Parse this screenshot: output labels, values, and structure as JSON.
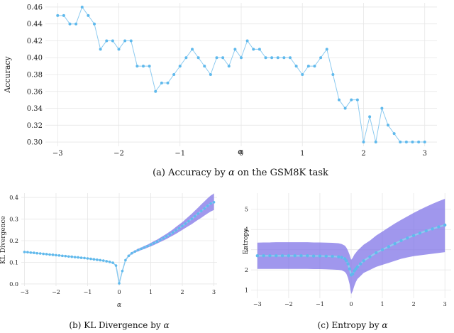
{
  "colors": {
    "line": "#8ecbf0",
    "marker": "#5fb9ec",
    "band": "#7b6fe6",
    "grid": "#e6e6e6"
  },
  "chart_data": [
    {
      "id": "a",
      "type": "line",
      "caption_prefix": "(a) Accuracy by ",
      "caption_symbol": "α",
      "caption_suffix": " on the GSM8K task",
      "xlabel": "α",
      "ylabel": "Accuracy",
      "xlim": [
        -3.2,
        3.2
      ],
      "ylim": [
        0.295,
        0.465
      ],
      "grid": true,
      "xticks": [
        -3,
        -2,
        -1,
        0,
        1,
        2,
        3
      ],
      "xtick_labels": [
        "−3",
        "−2",
        "−1",
        "0",
        "1",
        "2",
        "3"
      ],
      "yticks": [
        0.3,
        0.32,
        0.34,
        0.36,
        0.38,
        0.4,
        0.42,
        0.44,
        0.46
      ],
      "ytick_labels": [
        "0.30",
        "0.32",
        "0.34",
        "0.36",
        "0.38",
        "0.40",
        "0.42",
        "0.44",
        "0.46"
      ],
      "x": [
        -3.0,
        -2.9,
        -2.8,
        -2.7,
        -2.6,
        -2.5,
        -2.4,
        -2.3,
        -2.2,
        -2.1,
        -2.0,
        -1.9,
        -1.8,
        -1.7,
        -1.6,
        -1.5,
        -1.4,
        -1.3,
        -1.2,
        -1.1,
        -1.0,
        -0.9,
        -0.8,
        -0.7,
        -0.6,
        -0.5,
        -0.4,
        -0.3,
        -0.2,
        -0.1,
        0.0,
        0.1,
        0.2,
        0.3,
        0.4,
        0.5,
        0.6,
        0.7,
        0.8,
        0.9,
        1.0,
        1.1,
        1.2,
        1.3,
        1.4,
        1.5,
        1.6,
        1.7,
        1.8,
        1.9,
        2.0,
        2.1,
        2.2,
        2.3,
        2.4,
        2.5,
        2.6,
        2.7,
        2.8,
        2.9,
        3.0
      ],
      "y": [
        0.45,
        0.45,
        0.44,
        0.44,
        0.46,
        0.45,
        0.44,
        0.41,
        0.42,
        0.42,
        0.41,
        0.42,
        0.42,
        0.39,
        0.39,
        0.39,
        0.36,
        0.37,
        0.37,
        0.38,
        0.39,
        0.4,
        0.41,
        0.4,
        0.39,
        0.38,
        0.4,
        0.4,
        0.39,
        0.41,
        0.4,
        0.42,
        0.41,
        0.41,
        0.4,
        0.4,
        0.4,
        0.4,
        0.4,
        0.39,
        0.38,
        0.39,
        0.39,
        0.4,
        0.41,
        0.38,
        0.35,
        0.34,
        0.35,
        0.35,
        0.3,
        0.33,
        0.3,
        0.34,
        0.32,
        0.31,
        0.3,
        0.3,
        0.3,
        0.3,
        0.3
      ]
    },
    {
      "id": "b",
      "type": "line",
      "caption_prefix": "(b) KL Divergence by ",
      "caption_symbol": "α",
      "caption_suffix": "",
      "xlabel": "α",
      "ylabel": "KL Divergence",
      "xlim": [
        -3.1,
        3.1
      ],
      "ylim": [
        -0.01,
        0.42
      ],
      "grid": true,
      "xticks": [
        -3,
        -2,
        -1,
        0,
        1,
        2,
        3
      ],
      "xtick_labels": [
        "−3",
        "−2",
        "−1",
        "0",
        "1",
        "2",
        "3"
      ],
      "yticks": [
        0.0,
        0.1,
        0.2,
        0.3,
        0.4
      ],
      "ytick_labels": [
        "0.0",
        "0.1",
        "0.2",
        "0.3",
        "0.4"
      ],
      "x": [
        -3.0,
        -2.9,
        -2.8,
        -2.7,
        -2.6,
        -2.5,
        -2.4,
        -2.3,
        -2.2,
        -2.1,
        -2.0,
        -1.9,
        -1.8,
        -1.7,
        -1.6,
        -1.5,
        -1.4,
        -1.3,
        -1.2,
        -1.1,
        -1.0,
        -0.9,
        -0.8,
        -0.7,
        -0.6,
        -0.5,
        -0.4,
        -0.3,
        -0.2,
        -0.1,
        0.0,
        0.1,
        0.2,
        0.3,
        0.4,
        0.5,
        0.6,
        0.7,
        0.8,
        0.9,
        1.0,
        1.1,
        1.2,
        1.3,
        1.4,
        1.5,
        1.6,
        1.7,
        1.8,
        1.9,
        2.0,
        2.1,
        2.2,
        2.3,
        2.4,
        2.5,
        2.6,
        2.7,
        2.8,
        2.9,
        3.0
      ],
      "y": [
        0.148,
        0.147,
        0.145,
        0.144,
        0.142,
        0.141,
        0.139,
        0.138,
        0.136,
        0.135,
        0.133,
        0.132,
        0.13,
        0.129,
        0.127,
        0.126,
        0.124,
        0.123,
        0.121,
        0.12,
        0.118,
        0.116,
        0.114,
        0.112,
        0.11,
        0.108,
        0.105,
        0.102,
        0.098,
        0.085,
        0.003,
        0.06,
        0.11,
        0.13,
        0.142,
        0.15,
        0.157,
        0.163,
        0.169,
        0.175,
        0.182,
        0.189,
        0.196,
        0.204,
        0.212,
        0.22,
        0.229,
        0.238,
        0.248,
        0.258,
        0.268,
        0.279,
        0.29,
        0.301,
        0.313,
        0.325,
        0.337,
        0.349,
        0.361,
        0.372,
        0.378
      ],
      "band_lower": [
        0.146,
        0.145,
        0.143,
        0.142,
        0.14,
        0.139,
        0.137,
        0.136,
        0.134,
        0.133,
        0.131,
        0.13,
        0.128,
        0.127,
        0.125,
        0.124,
        0.122,
        0.121,
        0.119,
        0.118,
        0.116,
        0.114,
        0.112,
        0.11,
        0.108,
        0.106,
        0.103,
        0.1,
        0.096,
        0.083,
        0.001,
        0.057,
        0.106,
        0.126,
        0.137,
        0.145,
        0.151,
        0.157,
        0.162,
        0.168,
        0.174,
        0.18,
        0.187,
        0.194,
        0.201,
        0.208,
        0.216,
        0.224,
        0.232,
        0.241,
        0.25,
        0.259,
        0.268,
        0.277,
        0.287,
        0.297,
        0.306,
        0.316,
        0.326,
        0.335,
        0.342
      ],
      "band_upper": [
        0.15,
        0.149,
        0.147,
        0.146,
        0.144,
        0.143,
        0.141,
        0.14,
        0.138,
        0.137,
        0.135,
        0.134,
        0.132,
        0.131,
        0.129,
        0.128,
        0.126,
        0.125,
        0.123,
        0.122,
        0.12,
        0.118,
        0.116,
        0.114,
        0.112,
        0.11,
        0.107,
        0.104,
        0.1,
        0.087,
        0.005,
        0.063,
        0.114,
        0.134,
        0.147,
        0.155,
        0.163,
        0.169,
        0.176,
        0.182,
        0.19,
        0.198,
        0.205,
        0.214,
        0.223,
        0.232,
        0.242,
        0.252,
        0.264,
        0.275,
        0.286,
        0.299,
        0.312,
        0.325,
        0.339,
        0.353,
        0.368,
        0.382,
        0.396,
        0.409,
        0.418
      ]
    },
    {
      "id": "c",
      "type": "line",
      "caption_prefix": "(c) Entropy by ",
      "caption_symbol": "α",
      "caption_suffix": "",
      "xlabel": "α",
      "ylabel": "Entropy",
      "xlim": [
        -3.2,
        3.2
      ],
      "ylim": [
        0.6,
        5.8
      ],
      "grid": true,
      "xticks": [
        -3,
        -2,
        -1,
        0,
        1,
        2,
        3
      ],
      "xtick_labels": [
        "−3",
        "−2",
        "−1",
        "0",
        "1",
        "2",
        "3"
      ],
      "yticks": [
        1,
        2,
        3,
        4,
        5
      ],
      "ytick_labels": [
        "1",
        "2",
        "3",
        "4",
        "5"
      ],
      "x": [
        -3.0,
        -2.8,
        -2.6,
        -2.4,
        -2.2,
        -2.0,
        -1.8,
        -1.6,
        -1.4,
        -1.2,
        -1.0,
        -0.8,
        -0.6,
        -0.4,
        -0.3,
        -0.2,
        -0.15,
        -0.1,
        -0.05,
        0.0,
        0.05,
        0.1,
        0.15,
        0.2,
        0.3,
        0.4,
        0.6,
        0.8,
        1.0,
        1.2,
        1.4,
        1.6,
        1.8,
        2.0,
        2.2,
        2.4,
        2.6,
        2.8,
        3.0
      ],
      "y": [
        2.7,
        2.7,
        2.7,
        2.7,
        2.7,
        2.7,
        2.7,
        2.7,
        2.7,
        2.69,
        2.69,
        2.68,
        2.67,
        2.65,
        2.62,
        2.55,
        2.45,
        2.3,
        2.05,
        1.75,
        1.8,
        1.95,
        2.05,
        2.15,
        2.3,
        2.45,
        2.65,
        2.85,
        3.0,
        3.15,
        3.3,
        3.45,
        3.58,
        3.7,
        3.82,
        3.93,
        4.03,
        4.13,
        4.22
      ],
      "band_lower": [
        2.05,
        2.05,
        2.05,
        2.05,
        2.05,
        2.05,
        2.05,
        2.05,
        2.05,
        2.04,
        2.04,
        2.03,
        2.02,
        2.0,
        1.98,
        1.9,
        1.8,
        1.6,
        1.3,
        0.8,
        0.95,
        1.2,
        1.4,
        1.55,
        1.7,
        1.85,
        2.0,
        2.15,
        2.25,
        2.35,
        2.45,
        2.55,
        2.62,
        2.68,
        2.72,
        2.76,
        2.8,
        2.84,
        2.88
      ],
      "band_upper": [
        3.35,
        3.36,
        3.36,
        3.37,
        3.37,
        3.37,
        3.37,
        3.37,
        3.37,
        3.36,
        3.36,
        3.35,
        3.34,
        3.32,
        3.28,
        3.2,
        3.1,
        2.95,
        2.75,
        2.5,
        2.6,
        2.75,
        2.85,
        2.95,
        3.1,
        3.25,
        3.45,
        3.7,
        3.9,
        4.1,
        4.3,
        4.48,
        4.65,
        4.82,
        4.98,
        5.13,
        5.27,
        5.4,
        5.52
      ]
    }
  ]
}
